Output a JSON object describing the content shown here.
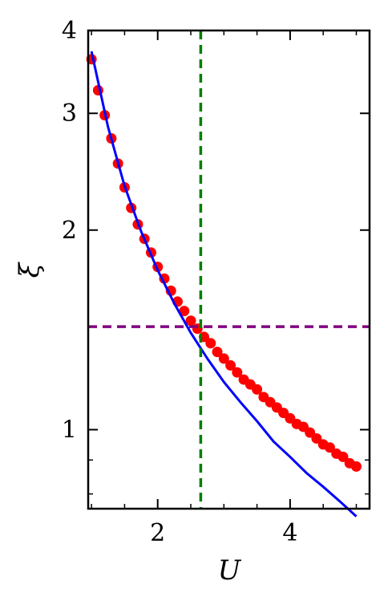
{
  "chart_data": {
    "type": "scatter",
    "title": "",
    "xlabel": "U",
    "ylabel": "ξ",
    "xlim": [
      0.95,
      5.2
    ],
    "ylim": [
      0.76,
      4.0
    ],
    "yscale": "log",
    "grid": false,
    "legend": "none",
    "x_ticks": [
      {
        "value": 2,
        "label": "2"
      },
      {
        "value": 4,
        "label": "4"
      }
    ],
    "x_minor_ticks": [
      1,
      1.5,
      2.5,
      3,
      3.5,
      4.5,
      5
    ],
    "y_ticks": [
      {
        "value": 1,
        "label": "1"
      },
      {
        "value": 2,
        "label": "2"
      },
      {
        "value": 3,
        "label": "3"
      },
      {
        "value": 4,
        "label": "4"
      }
    ],
    "y_minor_ticks": [
      0.8,
      0.9
    ],
    "series": [
      {
        "kind": "scatter",
        "color": "#ff0000",
        "x": [
          1.0,
          1.1,
          1.2,
          1.3,
          1.4,
          1.5,
          1.6,
          1.7,
          1.8,
          1.9,
          2.0,
          2.1,
          2.2,
          2.3,
          2.4,
          2.5,
          2.6,
          2.7,
          2.8,
          2.9,
          3.0,
          3.1,
          3.2,
          3.3,
          3.4,
          3.5,
          3.6,
          3.7,
          3.8,
          3.9,
          4.0,
          4.1,
          4.2,
          4.3,
          4.4,
          4.5,
          4.6,
          4.7,
          4.8,
          4.9,
          5.0
        ],
        "y": [
          3.62,
          3.25,
          2.98,
          2.75,
          2.52,
          2.32,
          2.16,
          2.04,
          1.94,
          1.85,
          1.76,
          1.69,
          1.62,
          1.56,
          1.51,
          1.46,
          1.42,
          1.38,
          1.35,
          1.31,
          1.28,
          1.25,
          1.22,
          1.19,
          1.17,
          1.15,
          1.12,
          1.1,
          1.08,
          1.06,
          1.04,
          1.02,
          1.01,
          0.99,
          0.97,
          0.95,
          0.94,
          0.92,
          0.91,
          0.89,
          0.88
        ]
      },
      {
        "kind": "line",
        "color": "#0000ff",
        "x": [
          1.0,
          1.25,
          1.5,
          1.75,
          2.0,
          2.25,
          2.5,
          2.75,
          3.0,
          3.25,
          3.5,
          3.75,
          4.0,
          4.25,
          4.5,
          4.75,
          5.0
        ],
        "y": [
          3.72,
          2.86,
          2.33,
          1.99,
          1.74,
          1.55,
          1.4,
          1.28,
          1.18,
          1.1,
          1.03,
          0.96,
          0.91,
          0.86,
          0.82,
          0.78,
          0.74
        ]
      }
    ],
    "reference_lines": [
      {
        "orientation": "vertical",
        "value": 2.65,
        "color": "#008000",
        "style": "dashed"
      },
      {
        "orientation": "horizontal",
        "value": 1.43,
        "color": "#800080",
        "style": "dashed"
      }
    ]
  }
}
